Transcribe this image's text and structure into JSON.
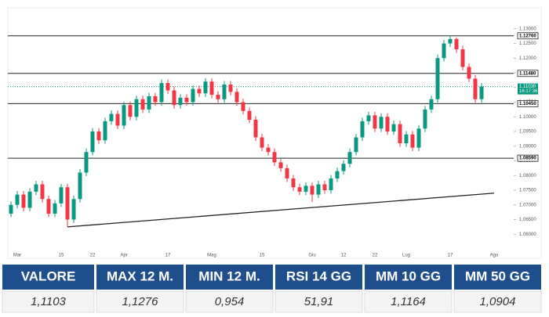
{
  "chart_data": {
    "type": "candlestick",
    "ylim": [
      1.055,
      1.135
    ],
    "yticks": [
      {
        "value": 1.06,
        "label": "1.06000"
      },
      {
        "value": 1.065,
        "label": "1.06500"
      },
      {
        "value": 1.07,
        "label": "1.07000"
      },
      {
        "value": 1.075,
        "label": "1.07500"
      },
      {
        "value": 1.08,
        "label": "1.08000"
      },
      {
        "value": 1.085,
        "label": "1.08500"
      },
      {
        "value": 1.09,
        "label": "1.09000"
      },
      {
        "value": 1.095,
        "label": "1.09500"
      },
      {
        "value": 1.1,
        "label": "1.10000"
      },
      {
        "value": 1.105,
        "label": "1.10500"
      },
      {
        "value": 1.11,
        "label": "1.11000"
      },
      {
        "value": 1.115,
        "label": "1.11500"
      },
      {
        "value": 1.12,
        "label": "1.12000"
      },
      {
        "value": 1.125,
        "label": "1.12500"
      },
      {
        "value": 1.13,
        "label": "1.13000"
      }
    ],
    "up_color": "#089981",
    "down_color": "#f23645",
    "x_labels": [
      {
        "index": 1,
        "label": "Mar"
      },
      {
        "index": 8,
        "label": "15"
      },
      {
        "index": 13,
        "label": "22"
      },
      {
        "index": 18,
        "label": "Apr"
      },
      {
        "index": 25,
        "label": "17"
      },
      {
        "index": 32,
        "label": "Mag"
      },
      {
        "index": 40,
        "label": "15"
      },
      {
        "index": 48,
        "label": "Giu"
      },
      {
        "index": 53,
        "label": "12"
      },
      {
        "index": 58,
        "label": "22"
      },
      {
        "index": 63,
        "label": "Lug"
      },
      {
        "index": 70,
        "label": "17"
      },
      {
        "index": 77,
        "label": "Ago"
      }
    ],
    "candles": [
      [
        1.067,
        1.0712,
        1.0658,
        1.07
      ],
      [
        1.07,
        1.0747,
        1.0688,
        1.0735
      ],
      [
        1.0735,
        1.0747,
        1.0678,
        1.069
      ],
      [
        1.069,
        1.0757,
        1.0678,
        1.0745
      ],
      [
        1.0745,
        1.0782,
        1.0733,
        1.077
      ],
      [
        1.077,
        1.0782,
        1.0708,
        1.072
      ],
      [
        1.072,
        1.0732,
        1.0658,
        1.067
      ],
      [
        1.067,
        1.0717,
        1.0658,
        1.0705
      ],
      [
        1.0705,
        1.0772,
        1.0693,
        1.076
      ],
      [
        1.076,
        1.0772,
        1.0625,
        1.065
      ],
      [
        1.065,
        1.0732,
        1.0638,
        1.072
      ],
      [
        1.072,
        1.0822,
        1.0708,
        1.081
      ],
      [
        1.081,
        1.0892,
        1.0798,
        1.088
      ],
      [
        1.088,
        1.0962,
        1.0868,
        1.095
      ],
      [
        1.095,
        1.0962,
        1.0908,
        1.092
      ],
      [
        1.092,
        1.0997,
        1.0908,
        1.0985
      ],
      [
        1.0985,
        1.1022,
        1.0973,
        1.101
      ],
      [
        1.101,
        1.1022,
        1.0958,
        1.097
      ],
      [
        1.097,
        1.1052,
        1.0958,
        1.104
      ],
      [
        1.104,
        1.1052,
        1.0988,
        1.1
      ],
      [
        1.1,
        1.1072,
        1.0988,
        1.106
      ],
      [
        1.106,
        1.1072,
        1.1013,
        1.1025
      ],
      [
        1.1025,
        1.1082,
        1.1013,
        1.107
      ],
      [
        1.107,
        1.1082,
        1.1038,
        1.105
      ],
      [
        1.105,
        1.1127,
        1.1038,
        1.1115
      ],
      [
        1.1115,
        1.1127,
        1.1078,
        1.109
      ],
      [
        1.109,
        1.1102,
        1.1028,
        1.104
      ],
      [
        1.104,
        1.1077,
        1.1028,
        1.1065
      ],
      [
        1.1065,
        1.1077,
        1.1038,
        1.105
      ],
      [
        1.105,
        1.1107,
        1.1038,
        1.1095
      ],
      [
        1.1095,
        1.1107,
        1.1068,
        1.108
      ],
      [
        1.108,
        1.1132,
        1.1068,
        1.112
      ],
      [
        1.112,
        1.1132,
        1.1063,
        1.1075
      ],
      [
        1.1075,
        1.1087,
        1.1048,
        1.106
      ],
      [
        1.106,
        1.1122,
        1.1048,
        1.111
      ],
      [
        1.111,
        1.1122,
        1.1073,
        1.1085
      ],
      [
        1.1085,
        1.1097,
        1.1038,
        1.105
      ],
      [
        1.105,
        1.1062,
        1.1008,
        1.102
      ],
      [
        1.102,
        1.1032,
        1.0978,
        1.099
      ],
      [
        1.099,
        1.1002,
        1.0918,
        1.093
      ],
      [
        1.093,
        1.0942,
        1.0883,
        1.0895
      ],
      [
        1.0895,
        1.0907,
        1.0868,
        1.088
      ],
      [
        1.088,
        1.0892,
        1.0833,
        1.0845
      ],
      [
        1.0845,
        1.0857,
        1.0813,
        1.0825
      ],
      [
        1.0825,
        1.0837,
        1.0778,
        1.079
      ],
      [
        1.079,
        1.0802,
        1.0748,
        1.076
      ],
      [
        1.076,
        1.0772,
        1.0733,
        1.0745
      ],
      [
        1.0745,
        1.0777,
        1.0733,
        1.0765
      ],
      [
        1.0765,
        1.0777,
        1.071,
        1.0735
      ],
      [
        1.0735,
        1.0782,
        1.0723,
        1.077
      ],
      [
        1.077,
        1.0782,
        1.0738,
        1.075
      ],
      [
        1.075,
        1.0802,
        1.0738,
        1.079
      ],
      [
        1.079,
        1.0827,
        1.0778,
        1.0815
      ],
      [
        1.0815,
        1.0852,
        1.0803,
        1.084
      ],
      [
        1.084,
        1.0892,
        1.0828,
        1.088
      ],
      [
        1.088,
        1.0942,
        1.0868,
        1.093
      ],
      [
        1.093,
        1.0997,
        1.0918,
        1.0985
      ],
      [
        1.0985,
        1.1017,
        1.0973,
        1.1005
      ],
      [
        1.1005,
        1.1017,
        1.0948,
        1.096
      ],
      [
        1.096,
        1.1012,
        1.0948,
        1.1
      ],
      [
        1.1,
        1.1012,
        1.0938,
        1.095
      ],
      [
        1.095,
        1.0987,
        1.0938,
        1.0975
      ],
      [
        1.0975,
        1.0987,
        1.0898,
        1.091
      ],
      [
        1.091,
        1.0952,
        1.0898,
        1.094
      ],
      [
        1.094,
        1.0952,
        1.0883,
        1.0895
      ],
      [
        1.0895,
        1.0972,
        1.0883,
        1.096
      ],
      [
        1.096,
        1.1037,
        1.0948,
        1.1025
      ],
      [
        1.1025,
        1.1072,
        1.1013,
        1.106
      ],
      [
        1.106,
        1.1212,
        1.1048,
        1.12
      ],
      [
        1.12,
        1.1262,
        1.1188,
        1.125
      ],
      [
        1.125,
        1.1276,
        1.1238,
        1.1265
      ],
      [
        1.1265,
        1.127,
        1.1218,
        1.123
      ],
      [
        1.123,
        1.1242,
        1.1158,
        1.117
      ],
      [
        1.117,
        1.1182,
        1.1118,
        1.113
      ],
      [
        1.113,
        1.1142,
        1.1048,
        1.106
      ],
      [
        1.106,
        1.1115,
        1.1048,
        1.1103
      ]
    ],
    "levels": [
      {
        "value": 1.1276,
        "label": "1.12760"
      },
      {
        "value": 1.1148,
        "label": "1.11480"
      },
      {
        "value": 1.1045,
        "label": "1.10450"
      },
      {
        "value": 1.0859,
        "label": "1.08590"
      }
    ],
    "current": {
      "value": 1.1103,
      "label": "1.11030",
      "time": "16:17:36"
    },
    "trendline": {
      "from": [
        9,
        1.0625
      ],
      "to": [
        77,
        1.074
      ]
    }
  },
  "table": {
    "headers": [
      "VALORE",
      "MAX 12 M.",
      "MIN 12 M.",
      "RSI 14 GG",
      "MM 10 GG",
      "MM 50 GG"
    ],
    "values": [
      "1,1103",
      "1,1276",
      "0,954",
      "51,91",
      "1,1164",
      "1,0904"
    ]
  }
}
